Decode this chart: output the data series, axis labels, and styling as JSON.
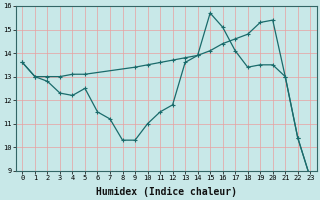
{
  "title": "",
  "xlabel": "Humidex (Indice chaleur)",
  "bg_color": "#c8e8e8",
  "line_color": "#1a6b6b",
  "grid_color": "#e8a0a0",
  "xlim": [
    -0.5,
    23.5
  ],
  "ylim": [
    9,
    16
  ],
  "xticks": [
    0,
    1,
    2,
    3,
    4,
    5,
    6,
    7,
    8,
    9,
    10,
    11,
    12,
    13,
    14,
    15,
    16,
    17,
    18,
    19,
    20,
    21,
    22,
    23
  ],
  "yticks": [
    9,
    10,
    11,
    12,
    13,
    14,
    15,
    16
  ],
  "line1_x": [
    0,
    1,
    2,
    3,
    4,
    5,
    6,
    7,
    8,
    9,
    10,
    11,
    12,
    13,
    14,
    15,
    16,
    17,
    18,
    19,
    20,
    21,
    22,
    23
  ],
  "line1_y": [
    13.6,
    13.0,
    12.8,
    12.3,
    12.2,
    12.5,
    11.5,
    11.2,
    10.3,
    10.3,
    11.0,
    11.5,
    11.8,
    13.6,
    13.9,
    15.7,
    15.1,
    14.1,
    13.4,
    13.5,
    13.5,
    13.0,
    10.4,
    8.7
  ],
  "line2_x": [
    0,
    1,
    2,
    3,
    4,
    5,
    9,
    10,
    11,
    12,
    13,
    14,
    15,
    16,
    17,
    18,
    19,
    20,
    21,
    22,
    23
  ],
  "line2_y": [
    13.6,
    13.0,
    13.0,
    13.0,
    13.1,
    13.1,
    13.4,
    13.5,
    13.6,
    13.7,
    13.8,
    13.9,
    14.1,
    14.4,
    14.6,
    14.8,
    15.3,
    15.4,
    13.0,
    10.4,
    8.7
  ],
  "xlabel_fontsize": 7,
  "tick_fontsize": 5,
  "linewidth": 0.9,
  "markersize": 3.5
}
